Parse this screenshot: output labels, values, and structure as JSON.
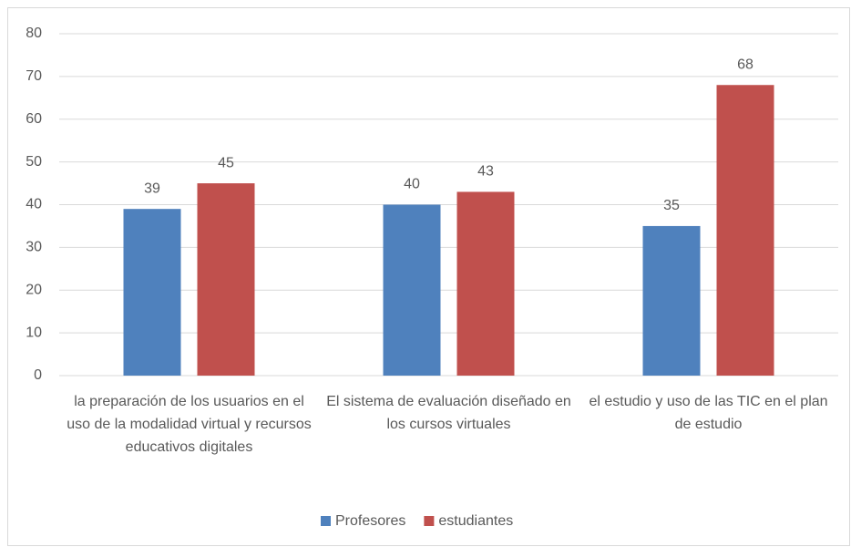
{
  "chart_data": {
    "type": "bar",
    "categories": [
      "la preparación de los usuarios en el uso de la modalidad virtual y recursos educativos digitales",
      "El sistema de evaluación diseñado en los cursos virtuales",
      "el estudio y uso de las TIC en el plan de estudio"
    ],
    "series": [
      {
        "name": "Profesores",
        "color": "#4f81bd",
        "values": [
          39,
          40,
          35
        ]
      },
      {
        "name": "estudiantes",
        "color": "#c0504d",
        "values": [
          45,
          43,
          68
        ]
      }
    ],
    "ylim": [
      0,
      80
    ],
    "yticks": [
      0,
      10,
      20,
      30,
      40,
      50,
      60,
      70,
      80
    ],
    "grid": true,
    "legend": "bottom"
  }
}
